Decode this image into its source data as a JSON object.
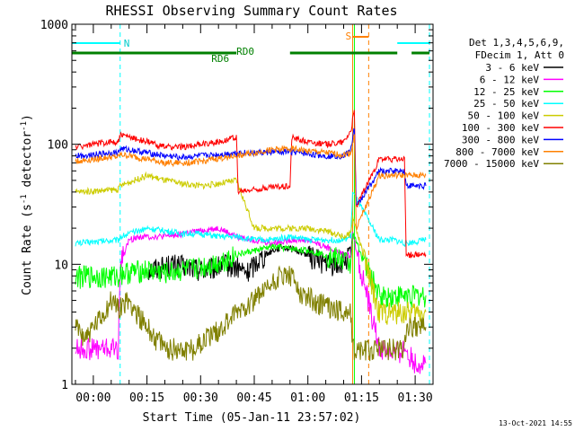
{
  "chart_data": {
    "type": "line",
    "title": "RHESSI Observing Summary Count Rates",
    "xlabel": "Start Time (05-Jan-11 23:57:02)",
    "ylabel_main": "Count Rate (s",
    "ylabel_sup1": "-1",
    "ylabel_mid": " detector",
    "ylabel_sup2": "-1",
    "ylabel_end": ")",
    "yscale": "log",
    "ylim": [
      1,
      1000
    ],
    "xlim_minutes": [
      -6,
      95
    ],
    "x_ticks": [
      {
        "m": 0,
        "label": "00:00"
      },
      {
        "m": 15,
        "label": "00:15"
      },
      {
        "m": 30,
        "label": "00:30"
      },
      {
        "m": 45,
        "label": "00:45"
      },
      {
        "m": 60,
        "label": "01:00"
      },
      {
        "m": 75,
        "label": "01:15"
      },
      {
        "m": 90,
        "label": "01:30"
      }
    ],
    "y_ticks": [
      {
        "v": 1,
        "label": "1"
      },
      {
        "v": 10,
        "label": "10"
      },
      {
        "v": 100,
        "label": "100"
      },
      {
        "v": 1000,
        "label": "1000"
      }
    ],
    "legend_header": [
      "Det 1,3,4,5,6,9,",
      "FDecim 1, Att 0"
    ],
    "series": [
      {
        "name": "3 - 6 keV",
        "color": "#000000",
        "x": [
          15,
          18,
          22,
          27,
          32,
          37,
          40,
          43,
          46,
          50,
          53,
          57,
          60,
          63,
          66,
          69,
          72,
          72.5
        ],
        "y": [
          9,
          9.5,
          10,
          9.5,
          9,
          10,
          9.5,
          8.5,
          11,
          13,
          14,
          13,
          12,
          11,
          10,
          10,
          12,
          18
        ]
      },
      {
        "name": "6 - 12 keV",
        "color": "#ff00ff",
        "x": [
          -5,
          7,
          7.5,
          10,
          13,
          15,
          20,
          25,
          30,
          35,
          40,
          45,
          50,
          55,
          60,
          65,
          70,
          72,
          72.5,
          80,
          80.5,
          84,
          87,
          90,
          93
        ],
        "y": [
          2,
          2,
          10,
          16,
          17,
          17,
          17,
          18,
          19,
          20,
          17,
          16,
          15,
          16,
          16,
          14,
          12,
          12,
          18,
          2,
          2,
          1.8,
          2,
          1.5,
          1.5
        ]
      },
      {
        "name": "12 - 25 keV",
        "color": "#00ff00",
        "x": [
          -5,
          7,
          7.5,
          15,
          20,
          25,
          30,
          35,
          40,
          45,
          50,
          55,
          60,
          65,
          70,
          72,
          72.5,
          80,
          80.5,
          84,
          87,
          87.5,
          93
        ],
        "y": [
          8,
          8,
          8.5,
          9,
          8.5,
          9,
          9.5,
          10.5,
          12,
          13,
          14,
          13.5,
          13,
          12,
          11,
          10,
          18,
          5.5,
          5.5,
          5.5,
          5.5,
          5.5,
          5.5
        ]
      },
      {
        "name": "25 - 50 keV",
        "color": "#00ffff",
        "x": [
          -5,
          7,
          7.5,
          15,
          20,
          25,
          30,
          35,
          40,
          45,
          50,
          55,
          60,
          65,
          70,
          72,
          72.5,
          80,
          80.5,
          84,
          87,
          87.5,
          93
        ],
        "y": [
          15,
          16,
          17,
          20,
          19,
          18,
          18,
          17,
          17,
          16,
          16,
          17,
          16,
          16,
          16,
          17,
          40,
          16,
          16,
          16,
          15,
          15,
          16
        ]
      },
      {
        "name": "50 - 100 keV",
        "color": "#cccc00",
        "x": [
          -5,
          7,
          7.5,
          15,
          20,
          25,
          30,
          35,
          40,
          45,
          50,
          55,
          60,
          65,
          70,
          72,
          72.5,
          80,
          80.5,
          84,
          87,
          87.5,
          93
        ],
        "y": [
          40,
          42,
          45,
          55,
          50,
          47,
          45,
          47,
          50,
          20,
          20,
          20,
          20,
          19,
          17,
          18,
          25,
          4,
          4,
          4,
          4,
          4,
          4
        ]
      },
      {
        "name": "100 - 300 keV",
        "color": "#ff0000",
        "x": [
          -5,
          0,
          5,
          7,
          7.5,
          10,
          15,
          20,
          25,
          30,
          35,
          40,
          40.5,
          45,
          50,
          55,
          55.5,
          60,
          65,
          70,
          72,
          73,
          73.5,
          80,
          80.5,
          84,
          87,
          87.5,
          93
        ],
        "y": [
          95,
          100,
          105,
          105,
          120,
          115,
          105,
          95,
          95,
          100,
          105,
          115,
          40,
          42,
          44,
          45,
          115,
          105,
          100,
          105,
          130,
          190,
          30,
          75,
          75,
          75,
          75,
          12,
          12
        ]
      },
      {
        "name": "300 - 800 keV",
        "color": "#0000ff",
        "x": [
          -5,
          0,
          5,
          7,
          7.5,
          10,
          15,
          20,
          25,
          30,
          35,
          40,
          45,
          50,
          55,
          60,
          65,
          70,
          72,
          73,
          73.5,
          80,
          80.5,
          84,
          87,
          87.5,
          93
        ],
        "y": [
          80,
          82,
          85,
          85,
          92,
          90,
          85,
          80,
          78,
          80,
          82,
          85,
          85,
          86,
          87,
          83,
          80,
          80,
          90,
          140,
          30,
          60,
          60,
          60,
          60,
          45,
          45
        ]
      },
      {
        "name": "800 - 7000 keV",
        "color": "#ff8000",
        "x": [
          -5,
          0,
          5,
          7,
          7.5,
          10,
          15,
          20,
          25,
          30,
          35,
          40,
          45,
          50,
          55,
          60,
          65,
          70,
          72,
          73,
          73.5,
          80,
          80.5,
          84,
          87,
          87.5,
          93
        ],
        "y": [
          72,
          75,
          78,
          78,
          82,
          80,
          75,
          70,
          70,
          72,
          76,
          80,
          85,
          90,
          92,
          88,
          85,
          82,
          85,
          120,
          20,
          55,
          55,
          55,
          55,
          55,
          55
        ]
      },
      {
        "name": "7000 - 15000 keV",
        "color": "#808000",
        "x": [
          -5,
          -2,
          2,
          5,
          7,
          10,
          15,
          20,
          25,
          28,
          32,
          36,
          40,
          44,
          48,
          52,
          55,
          58,
          62,
          66,
          70,
          72,
          72.5,
          80,
          80.5,
          84,
          87,
          87.5,
          93
        ],
        "y": [
          3,
          2.5,
          3.5,
          5,
          4.5,
          5,
          3,
          2,
          2,
          2,
          2.5,
          3,
          4,
          5,
          6,
          8,
          8,
          6,
          5,
          4.5,
          4,
          4,
          2,
          2,
          2,
          2,
          2,
          3,
          3
        ]
      }
    ],
    "top_bars": {
      "N_label": "N",
      "S_label": "S",
      "RD0_label": "RD0",
      "RD6_label": "RD6",
      "N_segments_min": [
        [
          -6,
          7.5
        ],
        [
          85,
          94
        ]
      ],
      "S_segments_min": [
        [
          72.5,
          77
        ]
      ],
      "RD_segments_min": [
        [
          -6,
          40
        ],
        [
          55,
          85
        ],
        [
          89,
          94
        ]
      ]
    },
    "vlines_min": [
      {
        "m": -6,
        "color": "#00ffff",
        "style": "solid"
      },
      {
        "m": 7.5,
        "color": "#00ffff",
        "style": "dashed"
      },
      {
        "m": 72.5,
        "color": "#ff8000",
        "style": "solid"
      },
      {
        "m": 73,
        "color": "#00ff00",
        "style": "solid"
      },
      {
        "m": 77,
        "color": "#ff8000",
        "style": "dashed"
      },
      {
        "m": 94,
        "color": "#00ffff",
        "style": "dashed"
      }
    ],
    "footer_date": "13-Oct-2021 14:55"
  }
}
